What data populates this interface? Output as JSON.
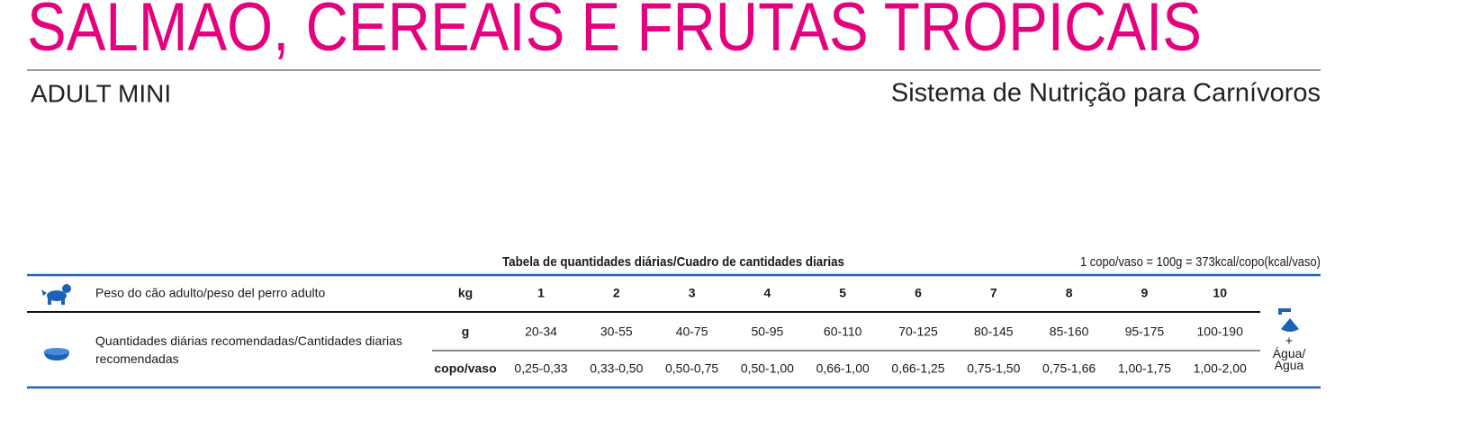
{
  "header": {
    "title": "SALMÃO, CEREAIS E FRUTAS TROPICAIS",
    "subtitle": "ADULT MINI",
    "tagline": "Sistema de Nutrição para Carnívoros"
  },
  "table": {
    "caption": "Tabela de quantidades diárias/Cuadro de cantidades diarias",
    "note": "1 copo/vaso = 100g = 373kcal/copo(kcal/vaso)",
    "weight_label": "Peso do cão adulto/peso del perro adulto",
    "weight_unit": "kg",
    "weights": [
      "1",
      "2",
      "3",
      "4",
      "5",
      "6",
      "7",
      "8",
      "9",
      "10"
    ],
    "quantity_label": "Quantidades diárias recomendadas/Cantidades diarias recomendadas",
    "grams_unit": "g",
    "grams": [
      "20-34",
      "30-55",
      "40-75",
      "50-95",
      "60-110",
      "70-125",
      "80-145",
      "85-160",
      "95-175",
      "100-190"
    ],
    "cups_unit": "copo/vaso",
    "cups": [
      "0,25-0,33",
      "0,33-0,50",
      "0,50-0,75",
      "0,50-1,00",
      "0,66-1,00",
      "0,66-1,25",
      "0,75-1,50",
      "0,75-1,66",
      "1,00-1,75",
      "1,00-2,00"
    ],
    "water_plus": "+",
    "water_label": "Água/ Agua"
  }
}
